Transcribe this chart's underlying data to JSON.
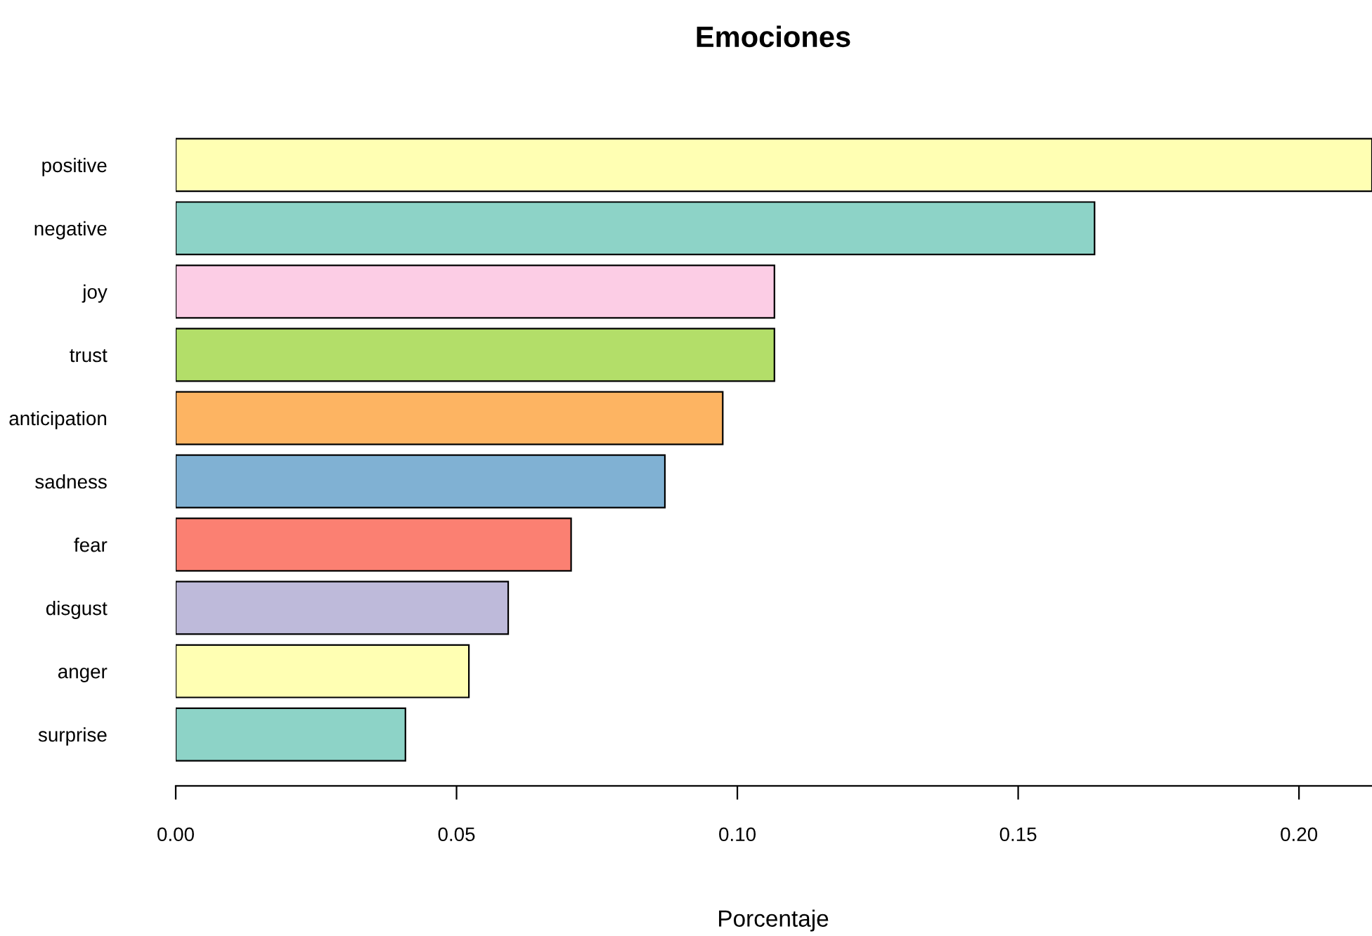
{
  "chart_data": {
    "type": "bar",
    "orientation": "horizontal",
    "title": "Emociones",
    "xlabel": "Porcentaje",
    "categories": [
      "positive",
      "negative",
      "joy",
      "trust",
      "anticipation",
      "sadness",
      "fear",
      "disgust",
      "anger",
      "surprise"
    ],
    "values": [
      0.213,
      0.1636,
      0.1066,
      0.1066,
      0.0974,
      0.0871,
      0.0704,
      0.0592,
      0.0522,
      0.0409
    ],
    "colors": [
      "#ffffb3",
      "#8dd3c7",
      "#fccde5",
      "#b3de69",
      "#fdb462",
      "#80b1d3",
      "#fb8072",
      "#bebada",
      "#ffffb3",
      "#8dd3c7"
    ],
    "xlim": [
      0,
      0.213
    ],
    "xticks": [
      {
        "value": 0,
        "label": "0.00"
      },
      {
        "value": 0.05,
        "label": "0.05"
      },
      {
        "value": 0.1,
        "label": "0.10"
      },
      {
        "value": 0.15,
        "label": "0.15"
      },
      {
        "value": 0.2,
        "label": "0.20"
      }
    ],
    "grid": false
  }
}
